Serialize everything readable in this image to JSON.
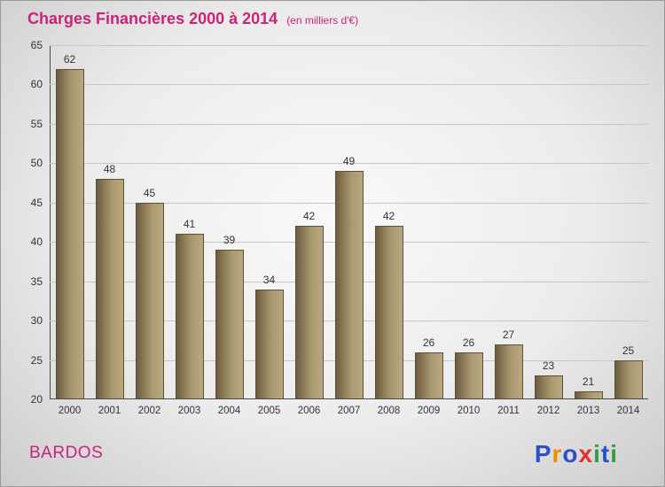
{
  "header": {
    "title": "Charges Financières 2000 à 2014",
    "subtitle": "(en milliers d'€)"
  },
  "footer": {
    "company_name": "BARDOS"
  },
  "logo": {
    "text": "Proxiti",
    "letters": [
      {
        "ch": "P",
        "color": "#2b50c8"
      },
      {
        "ch": "r",
        "color": "#f08c00"
      },
      {
        "ch": "o",
        "color": "#2b50c8"
      },
      {
        "ch": "x",
        "color": "#e03131"
      },
      {
        "ch": "i",
        "color": "#2f9e44"
      },
      {
        "ch": "t",
        "color": "#2b50c8"
      },
      {
        "ch": "i",
        "color": "#2f9e44"
      }
    ]
  },
  "colors": {
    "title_pink": "#cc2277",
    "bar_base": "#93825c",
    "axis": "#4a4a4a",
    "gridline": "#c7c7c7",
    "label_text": "#333333"
  },
  "chart_data": {
    "type": "bar",
    "title": "Charges Financières 2000 à 2014",
    "subtitle": "(en milliers d'€)",
    "xlabel": "",
    "ylabel": "",
    "categories": [
      "2000",
      "2001",
      "2002",
      "2003",
      "2004",
      "2005",
      "2006",
      "2007",
      "2008",
      "2009",
      "2010",
      "2011",
      "2012",
      "2013",
      "2014"
    ],
    "values": [
      62,
      48,
      45,
      41,
      39,
      34,
      42,
      49,
      42,
      26,
      26,
      27,
      23,
      21,
      25
    ],
    "ylim": [
      20,
      65
    ],
    "yticks": [
      20,
      25,
      30,
      35,
      40,
      45,
      50,
      55,
      60,
      65
    ],
    "grid": true,
    "legend": "none",
    "bar_color": "tan-gradient"
  }
}
